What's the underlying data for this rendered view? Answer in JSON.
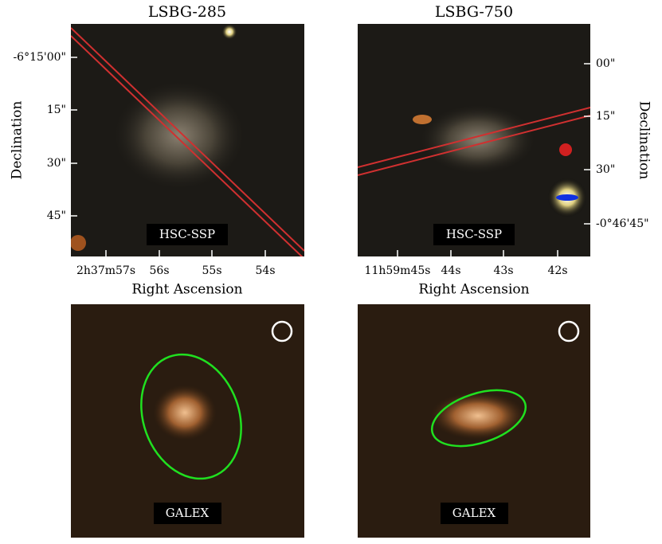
{
  "panels": [
    {
      "title": "LSBG-285",
      "yticks": [
        "-6°15'00\"",
        "15\"",
        "30\"",
        "45\""
      ],
      "xticks": [
        "2h37m57s",
        "56s",
        "55s",
        "54s"
      ],
      "xlabel": "Right Ascension",
      "ylabel": "Declination",
      "badge": "HSC-SSP"
    },
    {
      "title": "LSBG-750",
      "yticks": [
        "00\"",
        "15\"",
        "30\"",
        "-0°46'45\""
      ],
      "xticks": [
        "11h59m45s",
        "44s",
        "43s",
        "42s"
      ],
      "xlabel": "Right Ascension",
      "ylabel": "Declination",
      "badge": "HSC-SSP"
    },
    {
      "badge": "GALEX"
    },
    {
      "badge": "GALEX"
    }
  ]
}
